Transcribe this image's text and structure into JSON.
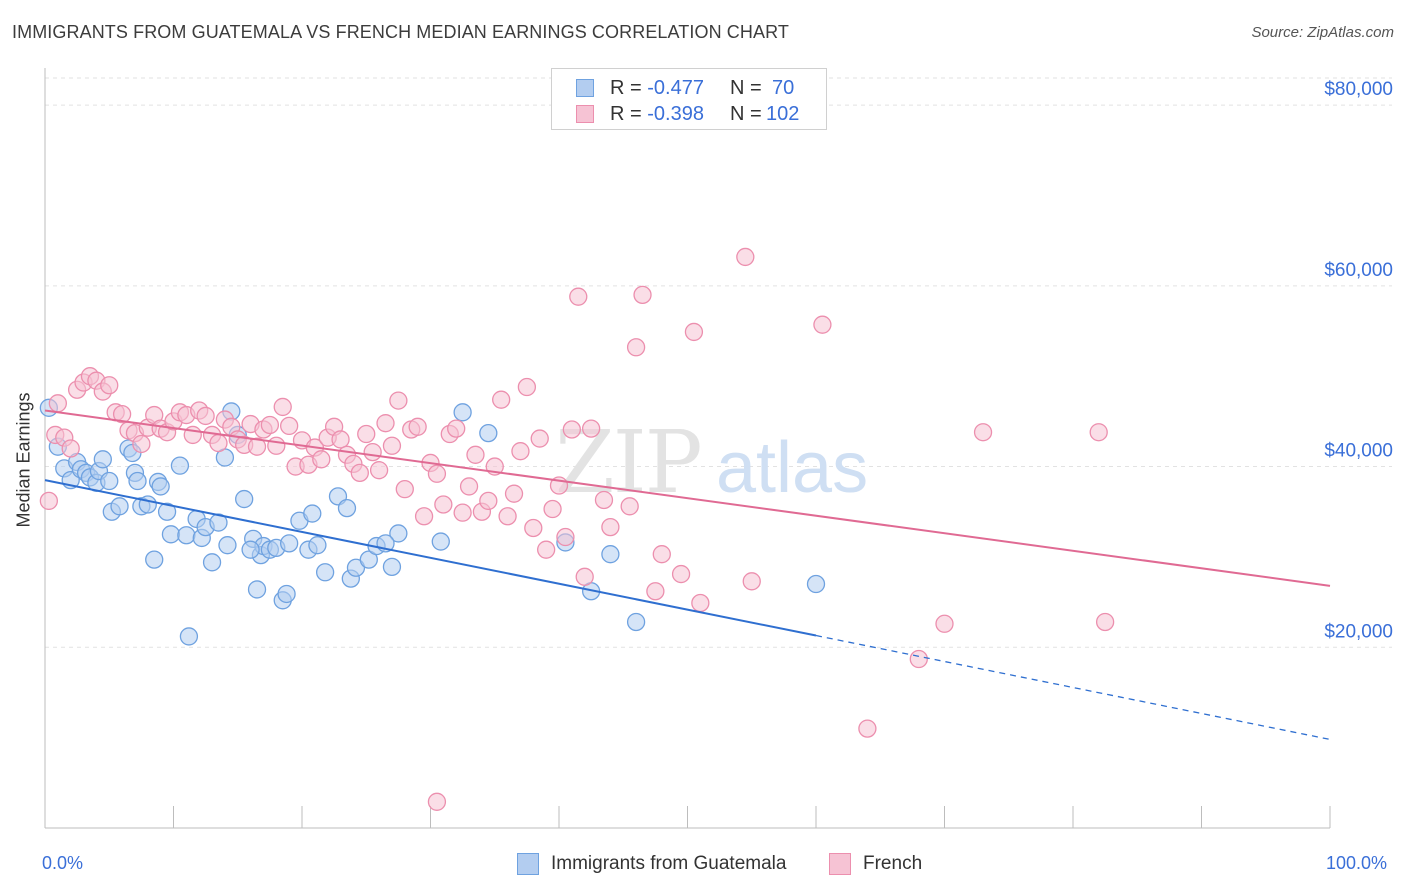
{
  "header": {
    "title": "IMMIGRANTS FROM GUATEMALA VS FRENCH MEDIAN EARNINGS CORRELATION CHART",
    "source": "Source: ZipAtlas.com"
  },
  "legend": {
    "rows": [
      {
        "r_label": "R = ",
        "r_value": "-0.477",
        "n_label": "N = ",
        "n_value": "70"
      },
      {
        "r_label": "R = ",
        "r_value": "-0.398",
        "n_label": "N = ",
        "n_value": "102"
      }
    ]
  },
  "watermark": {
    "zip": "ZIP",
    "atlas": "atlas"
  },
  "chart_data": {
    "type": "scatter",
    "ylabel": "Median Earnings",
    "xlim": [
      0,
      100
    ],
    "ylim": [
      0,
      83000
    ],
    "x_tick_labels": [
      "0.0%",
      "100.0%"
    ],
    "y_ticks": [
      {
        "value": 20000,
        "label": "$20,000"
      },
      {
        "value": 40000,
        "label": "$40,000"
      },
      {
        "value": 60000,
        "label": "$60,000"
      },
      {
        "value": 80000,
        "label": "$80,000"
      }
    ],
    "grid": "horizontal-dashed",
    "legend_position": "bottom",
    "series": [
      {
        "name": "Immigrants from Guatemala",
        "color": "#6fa2e0",
        "fill": "#b3cdf0",
        "trend": {
          "x0": 0,
          "y0": 38500,
          "x1": 60,
          "y1": 21300,
          "dash_to_x": 100,
          "dash_to_y": 9800,
          "color": "#2f6fd0"
        },
        "points": [
          [
            0.3,
            46500
          ],
          [
            1.0,
            42200
          ],
          [
            1.5,
            39800
          ],
          [
            2.0,
            38500
          ],
          [
            2.5,
            40500
          ],
          [
            2.8,
            39700
          ],
          [
            3.2,
            39300
          ],
          [
            3.5,
            38800
          ],
          [
            4.0,
            38200
          ],
          [
            4.2,
            39500
          ],
          [
            4.5,
            40800
          ],
          [
            5.0,
            38400
          ],
          [
            5.2,
            35000
          ],
          [
            5.8,
            35600
          ],
          [
            6.5,
            42000
          ],
          [
            6.8,
            41500
          ],
          [
            7.0,
            39300
          ],
          [
            7.5,
            35600
          ],
          [
            8.0,
            35800
          ],
          [
            8.5,
            29700
          ],
          [
            8.8,
            38300
          ],
          [
            9.0,
            37800
          ],
          [
            9.5,
            35000
          ],
          [
            9.8,
            32500
          ],
          [
            10.5,
            40100
          ],
          [
            11.0,
            32400
          ],
          [
            11.2,
            21200
          ],
          [
            11.8,
            34200
          ],
          [
            12.2,
            32100
          ],
          [
            12.5,
            33300
          ],
          [
            13.0,
            29400
          ],
          [
            13.5,
            33800
          ],
          [
            14.0,
            41000
          ],
          [
            14.2,
            31300
          ],
          [
            14.5,
            46100
          ],
          [
            15.0,
            43500
          ],
          [
            15.5,
            36400
          ],
          [
            16.2,
            32000
          ],
          [
            16.5,
            26400
          ],
          [
            16.8,
            30200
          ],
          [
            17.0,
            31200
          ],
          [
            17.5,
            30800
          ],
          [
            18.0,
            31000
          ],
          [
            18.5,
            25200
          ],
          [
            18.8,
            25900
          ],
          [
            19.0,
            31500
          ],
          [
            19.8,
            34000
          ],
          [
            20.5,
            30800
          ],
          [
            20.8,
            34800
          ],
          [
            21.2,
            31300
          ],
          [
            21.8,
            28300
          ],
          [
            22.8,
            36700
          ],
          [
            23.5,
            35400
          ],
          [
            23.8,
            27600
          ],
          [
            24.2,
            28800
          ],
          [
            25.2,
            29700
          ],
          [
            25.8,
            31200
          ],
          [
            27.5,
            32600
          ],
          [
            27.0,
            28900
          ],
          [
            30.8,
            31700
          ],
          [
            32.5,
            46000
          ],
          [
            34.5,
            43700
          ],
          [
            40.5,
            31600
          ],
          [
            42.5,
            26200
          ],
          [
            46.0,
            22800
          ],
          [
            44.0,
            30300
          ],
          [
            60.0,
            27000
          ],
          [
            26.5,
            31500
          ],
          [
            7.2,
            38400
          ],
          [
            16.0,
            30800
          ]
        ]
      },
      {
        "name": "French",
        "color": "#ec8fae",
        "fill": "#f6c3d4",
        "trend": {
          "x0": 0,
          "y0": 46200,
          "x1": 100,
          "y1": 26800,
          "color": "#e06a93"
        },
        "points": [
          [
            0.3,
            36200
          ],
          [
            0.8,
            43500
          ],
          [
            1.0,
            47000
          ],
          [
            1.5,
            43200
          ],
          [
            2.0,
            42000
          ],
          [
            2.5,
            48500
          ],
          [
            3.0,
            49300
          ],
          [
            3.5,
            50000
          ],
          [
            4.0,
            49500
          ],
          [
            4.5,
            48300
          ],
          [
            5.0,
            49000
          ],
          [
            5.5,
            46000
          ],
          [
            6.0,
            45800
          ],
          [
            6.5,
            44000
          ],
          [
            7.0,
            43700
          ],
          [
            7.5,
            42500
          ],
          [
            8.0,
            44300
          ],
          [
            8.5,
            45700
          ],
          [
            9.0,
            44200
          ],
          [
            9.5,
            43800
          ],
          [
            10.0,
            45000
          ],
          [
            10.5,
            46000
          ],
          [
            11.0,
            45700
          ],
          [
            11.5,
            43500
          ],
          [
            12.0,
            46200
          ],
          [
            12.5,
            45600
          ],
          [
            13.0,
            43500
          ],
          [
            13.5,
            42600
          ],
          [
            14.0,
            45200
          ],
          [
            14.5,
            44400
          ],
          [
            15.0,
            43000
          ],
          [
            15.5,
            42400
          ],
          [
            16.0,
            44700
          ],
          [
            16.5,
            42200
          ],
          [
            17.0,
            44100
          ],
          [
            17.5,
            44600
          ],
          [
            18.0,
            42300
          ],
          [
            18.5,
            46600
          ],
          [
            19.0,
            44500
          ],
          [
            19.5,
            40000
          ],
          [
            20.0,
            42900
          ],
          [
            20.5,
            40200
          ],
          [
            21.0,
            42100
          ],
          [
            21.5,
            40800
          ],
          [
            22.0,
            43200
          ],
          [
            22.5,
            44400
          ],
          [
            23.0,
            43000
          ],
          [
            23.5,
            41300
          ],
          [
            24.0,
            40300
          ],
          [
            24.5,
            39300
          ],
          [
            25.0,
            43600
          ],
          [
            25.5,
            41600
          ],
          [
            26.0,
            39600
          ],
          [
            26.5,
            44800
          ],
          [
            27.0,
            42300
          ],
          [
            27.5,
            47300
          ],
          [
            28.0,
            37500
          ],
          [
            28.5,
            44100
          ],
          [
            29.0,
            44400
          ],
          [
            29.5,
            34500
          ],
          [
            30.0,
            40400
          ],
          [
            30.5,
            39200
          ],
          [
            31.0,
            35800
          ],
          [
            31.5,
            43600
          ],
          [
            32.0,
            44200
          ],
          [
            32.5,
            34900
          ],
          [
            33.0,
            37800
          ],
          [
            33.5,
            41300
          ],
          [
            34.0,
            35000
          ],
          [
            34.5,
            36200
          ],
          [
            35.0,
            40000
          ],
          [
            35.5,
            47400
          ],
          [
            36.0,
            34500
          ],
          [
            36.5,
            37000
          ],
          [
            37.0,
            41700
          ],
          [
            37.5,
            48800
          ],
          [
            38.0,
            33200
          ],
          [
            38.5,
            43100
          ],
          [
            39.0,
            30800
          ],
          [
            39.5,
            35300
          ],
          [
            40.0,
            37900
          ],
          [
            40.5,
            32200
          ],
          [
            41.0,
            44100
          ],
          [
            41.5,
            58800
          ],
          [
            42.0,
            27800
          ],
          [
            42.5,
            44200
          ],
          [
            43.5,
            36300
          ],
          [
            44.0,
            33300
          ],
          [
            45.5,
            35600
          ],
          [
            46.0,
            53200
          ],
          [
            46.5,
            59000
          ],
          [
            47.5,
            26200
          ],
          [
            48.0,
            30300
          ],
          [
            49.5,
            28100
          ],
          [
            50.5,
            54900
          ],
          [
            51.0,
            24900
          ],
          [
            54.5,
            63200
          ],
          [
            55.0,
            27300
          ],
          [
            60.5,
            55700
          ],
          [
            64.0,
            11000
          ],
          [
            68.0,
            18700
          ],
          [
            70.0,
            22600
          ]
        ],
        "extra_points": [
          [
            73.0,
            43800
          ],
          [
            82.0,
            43800
          ],
          [
            82.5,
            22800
          ],
          [
            30.5,
            2900
          ]
        ]
      }
    ]
  }
}
